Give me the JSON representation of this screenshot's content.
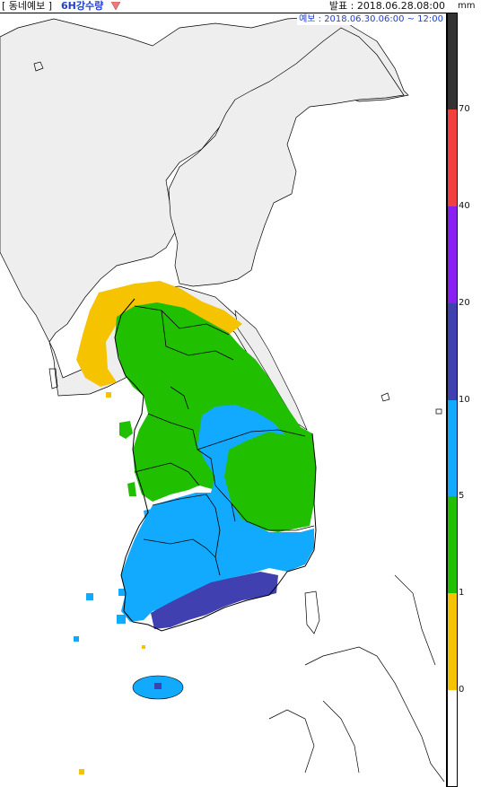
{
  "header": {
    "product_tab": "[ 동네예보 ]",
    "variable_tab": "6H강수량",
    "dropdown_icon": "triangle-down",
    "issue_time": "발표 : 2018.06.28.08:00",
    "unit": "mm"
  },
  "forecast": {
    "valid_time": "예보 : 2018.06.30.06:00 ~ 12:00"
  },
  "colors": {
    "none": "#ffffff",
    "0": "#f5c300",
    "1": "#20c000",
    "5": "#12aaff",
    "10": "#4040b0",
    "20": "#8a20f0",
    "40": "#f04040",
    "70": "#333333",
    "land_no_rain": "#eeeeee",
    "coast": "#000000"
  },
  "legend": {
    "labels": [
      "70",
      "40",
      "20",
      "10",
      "5",
      "1",
      "0"
    ],
    "steps": [
      {
        "value": "0",
        "color": "#f5c300"
      },
      {
        "value": "1",
        "color": "#20c000"
      },
      {
        "value": "5",
        "color": "#12aaff"
      },
      {
        "value": "10",
        "color": "#4040b0"
      },
      {
        "value": "20",
        "color": "#8a20f0"
      },
      {
        "value": "40",
        "color": "#f04040"
      },
      {
        "value": "70",
        "color": "#333333"
      }
    ]
  }
}
